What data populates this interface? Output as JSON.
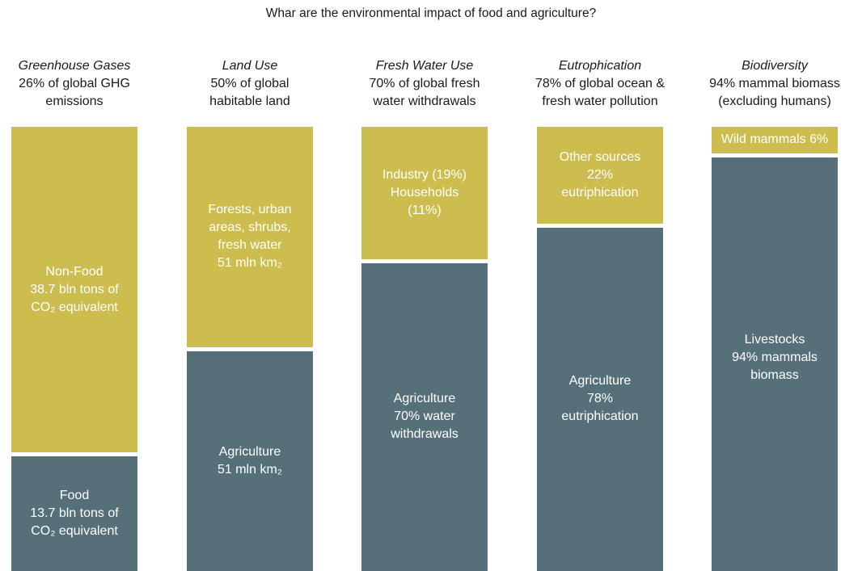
{
  "chart_data": {
    "type": "bar",
    "stacked": true,
    "normalized": true,
    "title": "Whar are the environmental impact of food and agriculture?",
    "categories": [
      {
        "name": "Greenhouse Gases",
        "description": "26% of global GHG\nemissions",
        "segments": [
          {
            "key": "agri",
            "label": "Food\n13.7 bln tons of\nCO₂ equivalent",
            "share": 26
          },
          {
            "key": "other",
            "label": "Non-Food\n38.7 bln tons of\nCO₂ equivalent",
            "share": 74
          }
        ]
      },
      {
        "name": "Land Use",
        "description": "50% of global\nhabitable land",
        "segments": [
          {
            "key": "agri",
            "label": "Agriculture\n51 mln km₂",
            "share": 50
          },
          {
            "key": "other",
            "label": "Forests, urban\nareas, shrubs,\nfresh water\n51 mln km₂",
            "share": 50
          }
        ]
      },
      {
        "name": "Fresh Water Use",
        "description": "70% of global fresh\nwater withdrawals",
        "segments": [
          {
            "key": "agri",
            "label": "Agriculture\n70% water\nwithdrawals",
            "share": 70
          },
          {
            "key": "other",
            "label": "Industry (19%)\nHouseholds\n(11%)",
            "share": 30
          }
        ]
      },
      {
        "name": "Eutrophication",
        "description": "78% of global ocean &\nfresh water pollution",
        "segments": [
          {
            "key": "agri",
            "label": "Agriculture\n78%\neutriphication",
            "share": 78
          },
          {
            "key": "other",
            "label": "Other sources\n22%\neutriphication",
            "share": 22
          }
        ]
      },
      {
        "name": "Biodiversity",
        "description": "94% mammal biomass\n(excluding humans)",
        "segments": [
          {
            "key": "agri",
            "label": "Livestocks\n94% mammals\nbiomass",
            "share": 94
          },
          {
            "key": "other",
            "label": "Wild mammals 6%",
            "share": 6
          }
        ]
      }
    ],
    "colors": {
      "agri": "#56707a",
      "other": "#cdbd4f"
    },
    "legend": "none",
    "grid": false
  }
}
